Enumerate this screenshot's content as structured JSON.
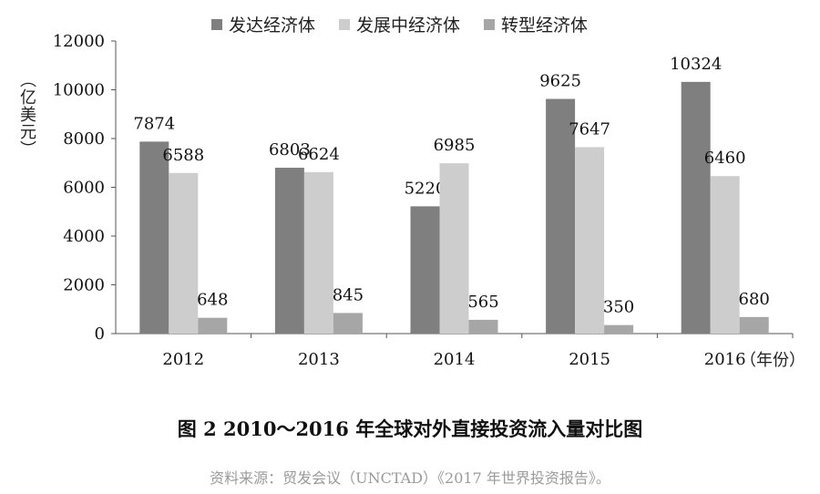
{
  "chart_data": {
    "type": "bar",
    "categories": [
      "2012",
      "2013",
      "2014",
      "2015",
      "2016"
    ],
    "series": [
      {
        "name": "发达经济体",
        "values": [
          7874,
          6803,
          5220,
          9625,
          10324
        ],
        "color": "#7f7f7f"
      },
      {
        "name": "发展中经济体",
        "values": [
          6588,
          6624,
          6985,
          7647,
          6460
        ],
        "color": "#cdcdcd"
      },
      {
        "name": "转型经济体",
        "values": [
          648,
          845,
          565,
          350,
          680
        ],
        "color": "#a6a6a6"
      }
    ],
    "ylabel": "（亿美元）",
    "xlabel": "（年份）",
    "ylim": [
      0,
      12000
    ],
    "yticks": [
      "0",
      "2000",
      "4000",
      "6000",
      "8000",
      "10000",
      "12000"
    ],
    "legend_position": "top",
    "grid": false
  },
  "caption": "图 2 2010～2016 年全球对外直接投资流入量对比图",
  "source": "资料来源：贸发会议（UNCTAD）《2017 年世界投资报告》。"
}
